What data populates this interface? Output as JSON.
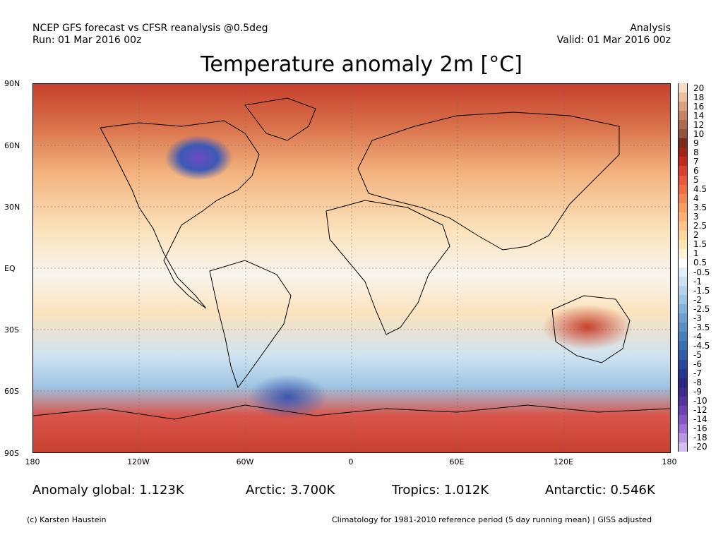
{
  "header": {
    "left_line1": "NCEP GFS forecast vs CFSR reanalysis @0.5deg",
    "left_line2": "Run: 01 Mar 2016 00z",
    "right_line1": "Analysis",
    "right_line2": "Valid: 01 Mar 2016 00z"
  },
  "title": "Temperature anomaly 2m [°C]",
  "lat_labels": [
    "90N",
    "60N",
    "30N",
    "EQ",
    "30S",
    "60S",
    "90S"
  ],
  "lon_labels": [
    "180",
    "120W",
    "60W",
    "0",
    "60E",
    "120E",
    "180"
  ],
  "colorbar": {
    "labels": [
      "20",
      "18",
      "16",
      "14",
      "12",
      "10",
      "9",
      "8",
      "7",
      "6",
      "5",
      "4.5",
      "4",
      "3.5",
      "3",
      "2.5",
      "2",
      "1.5",
      "1",
      "0.5",
      "-0.5",
      "-1",
      "-1.5",
      "-2",
      "-2.5",
      "-3",
      "-3.5",
      "-4",
      "-4.5",
      "-5",
      "-6",
      "-7",
      "-8",
      "-9",
      "-10",
      "-12",
      "-14",
      "-16",
      "-18",
      "-20"
    ],
    "colors": [
      "#f6dcc4",
      "#ecbfa0",
      "#d9a07f",
      "#c48363",
      "#ab6a4e",
      "#8f5540",
      "#7a2a1e",
      "#a3231a",
      "#c22a1f",
      "#d9412d",
      "#e9583a",
      "#f06d44",
      "#f48650",
      "#f89d5f",
      "#fbb270",
      "#fdc684",
      "#fed89b",
      "#fee6b4",
      "#fff3d6",
      "#ffffff",
      "#e3f0f9",
      "#cde3f2",
      "#b5d4eb",
      "#9cc4e3",
      "#83b2da",
      "#6ca0d0",
      "#5890c6",
      "#477fbc",
      "#3a6fb1",
      "#2f5ea6",
      "#28499a",
      "#23388d",
      "#2a2a80",
      "#3f2c8f",
      "#5632a0",
      "#6d41b3",
      "#8556c4",
      "#9d72d4",
      "#b896e2",
      "#d4bdef"
    ]
  },
  "stats": {
    "global": "Anomaly global: 1.123K",
    "arctic": "Arctic: 3.700K",
    "tropics": "Tropics: 1.012K",
    "antarctic": "Antarctic: 0.546K"
  },
  "footer": {
    "left": "(c) Karsten Haustein",
    "right": "Climatology for 1981-2010 reference period (5 day running mean) | GISS adjusted"
  }
}
